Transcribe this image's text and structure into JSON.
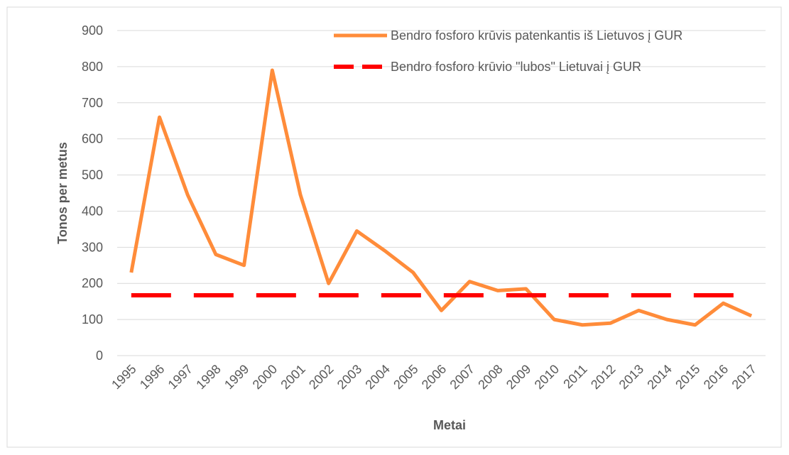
{
  "chart_data": {
    "type": "line",
    "x_label": "Metai",
    "y_label": "Tonos per metus",
    "categories": [
      "1995",
      "1996",
      "1997",
      "1998",
      "1999",
      "2000",
      "2001",
      "2002",
      "2003",
      "2004",
      "2005",
      "2006",
      "2007",
      "2008",
      "2009",
      "2010",
      "2011",
      "2012",
      "2013",
      "2014",
      "2015",
      "2016",
      "2017"
    ],
    "series": [
      {
        "name": "Bendro fosforo krūvis patenkantis iš Lietuvos į GUR",
        "color": "#ff8c3a",
        "dash": false,
        "values": [
          230,
          660,
          445,
          280,
          250,
          790,
          445,
          200,
          345,
          290,
          230,
          125,
          205,
          180,
          185,
          100,
          85,
          90,
          125,
          100,
          85,
          145,
          110
        ]
      },
      {
        "name": "Bendro fosforo krūvio \"lubos\" Lietuvai į GUR",
        "color": "#ff0000",
        "dash": true,
        "values": [
          167,
          167,
          167,
          167,
          167,
          167,
          167,
          167,
          167,
          167,
          167,
          167,
          167,
          167,
          167,
          167,
          167,
          167,
          167,
          167,
          167,
          167,
          167
        ]
      }
    ],
    "ylim": [
      0,
      900
    ],
    "yticks": [
      0,
      100,
      200,
      300,
      400,
      500,
      600,
      700,
      800,
      900
    ],
    "grid": true,
    "legend": "top-right"
  }
}
